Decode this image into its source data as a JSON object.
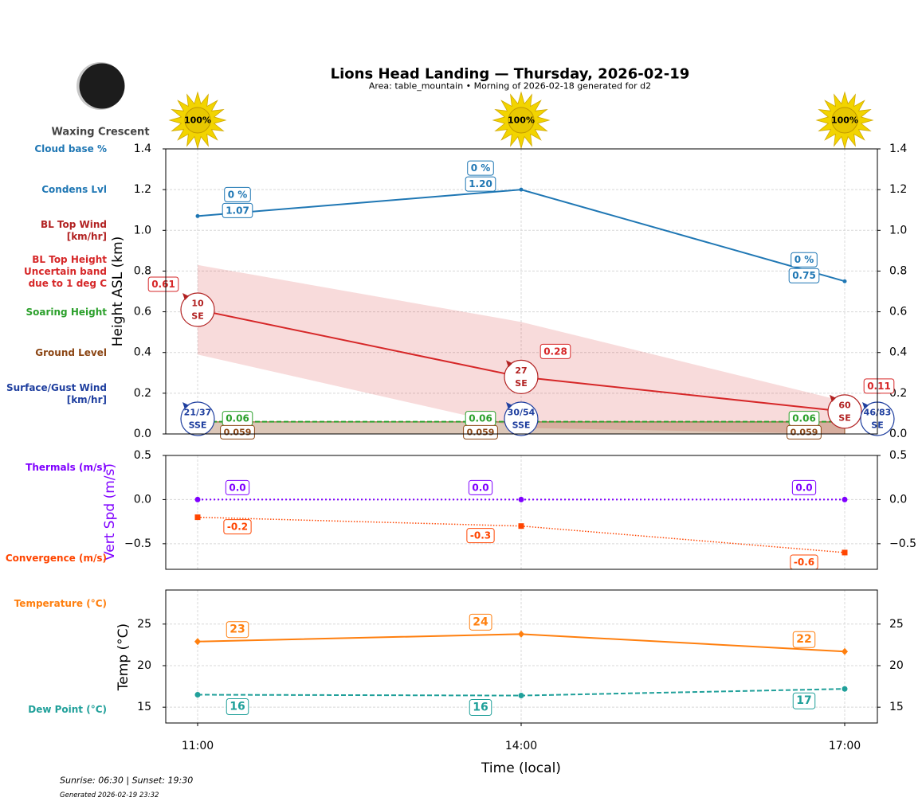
{
  "header": {
    "title": "Lions Head Landing — Thursday, 2026-02-19",
    "subtitle": "Area: table_mountain • Morning of 2026-02-18 generated for d2",
    "moon_phase": "Waxing Crescent"
  },
  "footer": {
    "sun_times": "Sunrise: 06:30 | Sunset: 19:30",
    "generated": "Generated 2026-02-19 23:32"
  },
  "chart_data": [
    {
      "type": "line",
      "y_label": "Height ASL (km)",
      "ylim": [
        0,
        1.4
      ],
      "yticks": [
        {
          "value": 0,
          "label": "0.0"
        },
        {
          "value": 0.2,
          "label": "0.2"
        },
        {
          "value": 0.4,
          "label": "0.4"
        },
        {
          "value": 0.6,
          "label": "0.6"
        },
        {
          "value": 0.8,
          "label": "0.8"
        },
        {
          "value": 1.0,
          "label": "1.0"
        },
        {
          "value": 1.2,
          "label": "1.2"
        },
        {
          "value": 1.4,
          "label": "1.4"
        }
      ],
      "grid": true,
      "sun": {
        "values": [
          100,
          100,
          100
        ],
        "value_labels": [
          "100%",
          "100%",
          "100%"
        ],
        "color": "#f2d400"
      },
      "series": [
        {
          "name": [
            "Cloud base %"
          ],
          "kind": "annotation",
          "color": "#1f77b4",
          "values": [
            0,
            0,
            0
          ],
          "value_labels": [
            "0 %",
            "0 %",
            "0 %"
          ]
        },
        {
          "name": [
            "Condens Lvl"
          ],
          "kind": "line",
          "color": "#1f77b4",
          "values": [
            1.07,
            1.2,
            0.75
          ],
          "value_labels": [
            "1.07",
            "1.20",
            "0.75"
          ]
        },
        {
          "name": [
            "BL Top Wind",
            "[km/hr]"
          ],
          "kind": "wind",
          "color": "#b22222",
          "values": [
            10,
            27,
            60
          ],
          "directions": [
            "SE",
            "SE",
            "SE"
          ]
        },
        {
          "name": [
            "BL Top Height",
            "Uncertain band",
            "due to 1 deg C"
          ],
          "kind": "line",
          "color": "#d62728",
          "values": [
            0.61,
            0.28,
            0.11
          ],
          "value_labels": [
            "0.61",
            "0.28",
            "0.11"
          ],
          "upper": [
            0.83,
            0.55,
            0.16
          ],
          "lower": [
            0.39,
            0.03,
            0.0
          ]
        },
        {
          "name": [
            "Soaring Height"
          ],
          "kind": "line",
          "dash": "6 3",
          "color": "#2ca02c",
          "values": [
            0.06,
            0.06,
            0.06
          ],
          "value_labels": [
            "0.06",
            "0.06",
            "0.06"
          ]
        },
        {
          "name": [
            "Ground Level"
          ],
          "kind": "area",
          "color": "#8b4513",
          "values": [
            0.059,
            0.059,
            0.059
          ],
          "value_labels": [
            "0.059",
            "0.059",
            "0.059"
          ]
        },
        {
          "name": [
            "Surface/Gust Wind",
            "[km/hr]"
          ],
          "kind": "wind",
          "color": "#1f3f9f",
          "labels": [
            "21/37",
            "30/54",
            "46/83"
          ],
          "directions": [
            "SSE",
            "SSE",
            "SE"
          ]
        }
      ]
    },
    {
      "type": "line",
      "y_label": "Vert Spd (m/s)",
      "y_label_color": "#7f00ff",
      "ylim": [
        -0.79,
        0.5
      ],
      "yticks": [
        {
          "value": -0.5,
          "label": "−0.5"
        },
        {
          "value": 0,
          "label": "0.0"
        },
        0.5
      ],
      "grid": true,
      "series": [
        {
          "name": [
            "Thermals (m/s)"
          ],
          "kind": "line",
          "dash": "2 3",
          "marker": "circle",
          "color": "#7f00ff",
          "values": [
            0,
            0,
            0
          ],
          "value_labels": [
            "0.0",
            "0.0",
            "0.0"
          ]
        },
        {
          "name": [
            "Convergence (m/s)"
          ],
          "kind": "line",
          "dash": "1.5 2",
          "marker": "square",
          "color": "#ff4500",
          "values": [
            -0.2,
            -0.3,
            -0.6
          ],
          "value_labels": [
            "-0.2",
            "-0.3",
            "-0.6"
          ]
        }
      ]
    },
    {
      "type": "line",
      "y_label": "Temp (°C)",
      "x_label": "Time (local)",
      "categories": [
        "11:00",
        "14:00",
        "17:00"
      ],
      "ylim": [
        13.1,
        29.1
      ],
      "yticks": [
        15,
        20,
        25
      ],
      "grid": true,
      "series": [
        {
          "name": [
            "Temperature (°C)"
          ],
          "kind": "line",
          "marker": "diamond",
          "color": "#ff7f0e",
          "values": [
            22.9,
            23.8,
            21.7
          ],
          "value_labels": [
            "23",
            "24",
            "22"
          ]
        },
        {
          "name": [
            "Dew Point (°C)"
          ],
          "kind": "line",
          "dash": "6 3",
          "marker": "circle",
          "color": "#20a09a",
          "values": [
            16.5,
            16.4,
            17.2
          ],
          "value_labels": [
            "16",
            "16",
            "17"
          ]
        }
      ]
    }
  ]
}
